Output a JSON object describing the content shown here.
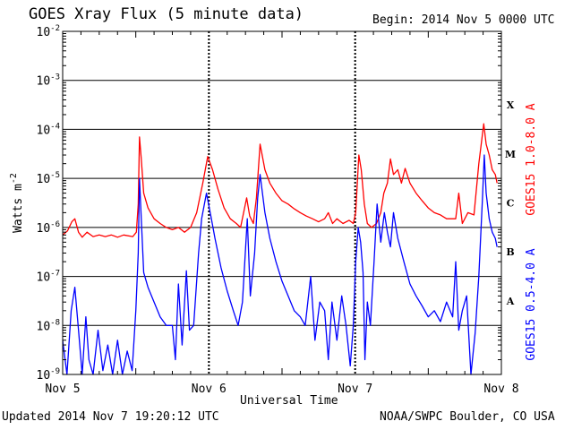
{
  "header": {
    "title": "GOES Xray Flux (5 minute data)",
    "begin": "Begin:  2014 Nov 5 0000 UTC"
  },
  "footer": {
    "updated": "Updated 2014 Nov  7 19:20:12 UTC",
    "credit": "NOAA/SWPC Boulder, CO USA"
  },
  "chart_data": {
    "type": "line",
    "title": "GOES Xray Flux (5 minute data)",
    "xlabel": "Universal Time",
    "ylabel": "Watts m",
    "ylabel_sup": "-2",
    "yscale": "log",
    "ylim": [
      1e-09,
      0.01
    ],
    "xlim": [
      0,
      72
    ],
    "x_units": "hours since 2014 Nov 5 0000 UTC",
    "x_ticks": [
      {
        "x": 0,
        "label": "Nov 5"
      },
      {
        "x": 24,
        "label": "Nov 6"
      },
      {
        "x": 48,
        "label": "Nov 7"
      },
      {
        "x": 72,
        "label": "Nov 8"
      }
    ],
    "y_ticks": [
      {
        "base": "10",
        "exp": "-9",
        "value": 1e-09
      },
      {
        "base": "10",
        "exp": "-8",
        "value": 1e-08
      },
      {
        "base": "10",
        "exp": "-7",
        "value": 1e-07
      },
      {
        "base": "10",
        "exp": "-6",
        "value": 1e-06
      },
      {
        "base": "10",
        "exp": "-5",
        "value": 1e-05
      },
      {
        "base": "10",
        "exp": "-4",
        "value": 0.0001
      },
      {
        "base": "10",
        "exp": "-3",
        "value": 0.001
      },
      {
        "base": "10",
        "exp": "-2",
        "value": 0.01
      }
    ],
    "flare_classes": [
      {
        "label": "A",
        "value": 3.16e-08
      },
      {
        "label": "B",
        "value": 3.16e-07
      },
      {
        "label": "C",
        "value": 3.16e-06
      },
      {
        "label": "M",
        "value": 3.16e-05
      },
      {
        "label": "X",
        "value": 0.000316
      }
    ],
    "grid": true,
    "series": [
      {
        "name": "GOES15 1.0-8.0 A",
        "color": "#ff0000",
        "points": [
          [
            0,
            7e-07
          ],
          [
            0.8,
            8.5e-07
          ],
          [
            1.5,
            1.3e-06
          ],
          [
            2,
            1.5e-06
          ],
          [
            2.6,
            8e-07
          ],
          [
            3.2,
            6.3e-07
          ],
          [
            4,
            8e-07
          ],
          [
            5,
            6.5e-07
          ],
          [
            6,
            7e-07
          ],
          [
            7,
            6.5e-07
          ],
          [
            8,
            7e-07
          ],
          [
            9,
            6.3e-07
          ],
          [
            10,
            7e-07
          ],
          [
            11.5,
            6.5e-07
          ],
          [
            12.1,
            8e-07
          ],
          [
            12.4,
            3e-06
          ],
          [
            12.6,
            7e-05
          ],
          [
            12.9,
            2.5e-05
          ],
          [
            13.3,
            5e-06
          ],
          [
            14,
            2.5e-06
          ],
          [
            15,
            1.5e-06
          ],
          [
            16,
            1.2e-06
          ],
          [
            17,
            1e-06
          ],
          [
            18,
            9e-07
          ],
          [
            19,
            1e-06
          ],
          [
            20,
            8e-07
          ],
          [
            21,
            1e-06
          ],
          [
            22,
            2e-06
          ],
          [
            23,
            8e-06
          ],
          [
            23.8,
            2.8e-05
          ],
          [
            24.6,
            1.5e-05
          ],
          [
            25.5,
            6e-06
          ],
          [
            26.5,
            2.5e-06
          ],
          [
            27.5,
            1.5e-06
          ],
          [
            28.5,
            1.2e-06
          ],
          [
            29.2,
            1e-06
          ],
          [
            29.7,
            2e-06
          ],
          [
            30.2,
            4e-06
          ],
          [
            30.7,
            1.7e-06
          ],
          [
            31.3,
            1.2e-06
          ],
          [
            31.8,
            4e-06
          ],
          [
            32.4,
            5e-05
          ],
          [
            33.2,
            1.5e-05
          ],
          [
            34,
            8e-06
          ],
          [
            35,
            5e-06
          ],
          [
            36,
            3.5e-06
          ],
          [
            37,
            3e-06
          ],
          [
            38,
            2.4e-06
          ],
          [
            39,
            2e-06
          ],
          [
            40,
            1.7e-06
          ],
          [
            41,
            1.5e-06
          ],
          [
            42,
            1.3e-06
          ],
          [
            43,
            1.5e-06
          ],
          [
            43.6,
            2e-06
          ],
          [
            44.3,
            1.2e-06
          ],
          [
            45,
            1.5e-06
          ],
          [
            46,
            1.2e-06
          ],
          [
            47,
            1.4e-06
          ],
          [
            47.7,
            1.2e-06
          ],
          [
            48.1,
            2e-06
          ],
          [
            48.6,
            3e-05
          ],
          [
            49,
            1.5e-05
          ],
          [
            49.5,
            3e-06
          ],
          [
            50,
            1.2e-06
          ],
          [
            50.7,
            1e-06
          ],
          [
            51.5,
            1.2e-06
          ],
          [
            52.2,
            2e-06
          ],
          [
            52.7,
            5e-06
          ],
          [
            53.3,
            8e-06
          ],
          [
            53.8,
            2.5e-05
          ],
          [
            54.3,
            1.2e-05
          ],
          [
            55,
            1.5e-05
          ],
          [
            55.6,
            8e-06
          ],
          [
            56.2,
            1.6e-05
          ],
          [
            57,
            8e-06
          ],
          [
            58,
            5e-06
          ],
          [
            59,
            3.5e-06
          ],
          [
            60,
            2.5e-06
          ],
          [
            61,
            2e-06
          ],
          [
            62,
            1.8e-06
          ],
          [
            63,
            1.5e-06
          ],
          [
            64.5,
            1.5e-06
          ],
          [
            65,
            5e-06
          ],
          [
            65.6,
            1.2e-06
          ],
          [
            66.5,
            2e-06
          ],
          [
            67.5,
            1.8e-06
          ],
          [
            68.3,
            2e-05
          ],
          [
            69.1,
            0.00013
          ],
          [
            69.5,
            5e-05
          ],
          [
            70,
            3e-05
          ],
          [
            70.5,
            1.5e-05
          ],
          [
            71,
            1.2e-05
          ],
          [
            71.3,
            8e-06
          ]
        ]
      },
      {
        "name": "GOES15 0.5-4.0 A",
        "color": "#0000ff",
        "points": [
          [
            0,
            5e-09
          ],
          [
            0.7,
            1e-09
          ],
          [
            1.4,
            2e-08
          ],
          [
            2,
            6e-08
          ],
          [
            2.6,
            8e-09
          ],
          [
            3.2,
            1e-09
          ],
          [
            3.8,
            1.5e-08
          ],
          [
            4.3,
            2e-09
          ],
          [
            5,
            1e-09
          ],
          [
            5.8,
            8e-09
          ],
          [
            6.6,
            1.2e-09
          ],
          [
            7.4,
            4e-09
          ],
          [
            8.2,
            1e-09
          ],
          [
            9,
            5e-09
          ],
          [
            9.8,
            1e-09
          ],
          [
            10.6,
            3e-09
          ],
          [
            11.4,
            1.2e-09
          ],
          [
            12,
            2e-08
          ],
          [
            12.4,
            3e-07
          ],
          [
            12.6,
            1e-05
          ],
          [
            12.9,
            1.5e-06
          ],
          [
            13.3,
            1.2e-07
          ],
          [
            14,
            6e-08
          ],
          [
            15,
            3e-08
          ],
          [
            16,
            1.5e-08
          ],
          [
            17,
            1e-08
          ],
          [
            18,
            1e-08
          ],
          [
            18.5,
            2e-09
          ],
          [
            19,
            7e-08
          ],
          [
            19.6,
            4e-09
          ],
          [
            20.3,
            1.3e-07
          ],
          [
            20.8,
            8e-09
          ],
          [
            21.5,
            1e-08
          ],
          [
            22.3,
            3e-07
          ],
          [
            22.8,
            1.5e-06
          ],
          [
            23.6,
            5e-06
          ],
          [
            24.4,
            1.5e-06
          ],
          [
            25,
            6e-07
          ],
          [
            26,
            1.5e-07
          ],
          [
            27,
            5e-08
          ],
          [
            28,
            2e-08
          ],
          [
            28.8,
            1e-08
          ],
          [
            29.5,
            3e-08
          ],
          [
            30.3,
            1.5e-06
          ],
          [
            30.8,
            4e-08
          ],
          [
            31.5,
            3e-07
          ],
          [
            32,
            4e-06
          ],
          [
            32.4,
            1.2e-05
          ],
          [
            33.2,
            2e-06
          ],
          [
            34,
            6e-07
          ],
          [
            35,
            2e-07
          ],
          [
            36,
            8e-08
          ],
          [
            37,
            4e-08
          ],
          [
            38,
            2e-08
          ],
          [
            39,
            1.5e-08
          ],
          [
            39.8,
            1e-08
          ],
          [
            40.7,
            1e-07
          ],
          [
            41.4,
            5e-09
          ],
          [
            42.2,
            3e-08
          ],
          [
            43,
            2e-08
          ],
          [
            43.6,
            2e-09
          ],
          [
            44.2,
            3e-08
          ],
          [
            45,
            5e-09
          ],
          [
            45.8,
            4e-08
          ],
          [
            46.5,
            1e-08
          ],
          [
            47.2,
            1.5e-09
          ],
          [
            47.7,
            1e-08
          ],
          [
            48.1,
            2e-07
          ],
          [
            48.5,
            1e-06
          ],
          [
            48.9,
            5e-07
          ],
          [
            49.3,
            1.2e-07
          ],
          [
            49.6,
            2e-09
          ],
          [
            50,
            3e-08
          ],
          [
            50.5,
            1e-08
          ],
          [
            51.1,
            2e-07
          ],
          [
            51.6,
            3e-06
          ],
          [
            52.2,
            5e-07
          ],
          [
            52.8,
            2e-06
          ],
          [
            53.3,
            8e-07
          ],
          [
            53.8,
            4e-07
          ],
          [
            54.3,
            2e-06
          ],
          [
            55,
            6e-07
          ],
          [
            56,
            2e-07
          ],
          [
            57,
            7e-08
          ],
          [
            58,
            4e-08
          ],
          [
            59,
            2.5e-08
          ],
          [
            60,
            1.5e-08
          ],
          [
            61,
            2e-08
          ],
          [
            62,
            1.2e-08
          ],
          [
            63,
            3e-08
          ],
          [
            64,
            1.5e-08
          ],
          [
            64.5,
            2e-07
          ],
          [
            65,
            8e-09
          ],
          [
            65.6,
            2e-08
          ],
          [
            66.3,
            4e-08
          ],
          [
            67,
            1e-09
          ],
          [
            67.7,
            7e-09
          ],
          [
            68.3,
            1e-07
          ],
          [
            68.9,
            4e-06
          ],
          [
            69.2,
            3e-05
          ],
          [
            69.5,
            5e-06
          ],
          [
            70,
            1.5e-06
          ],
          [
            70.5,
            8e-07
          ],
          [
            71,
            6e-07
          ],
          [
            71.3,
            4e-07
          ]
        ]
      }
    ]
  }
}
